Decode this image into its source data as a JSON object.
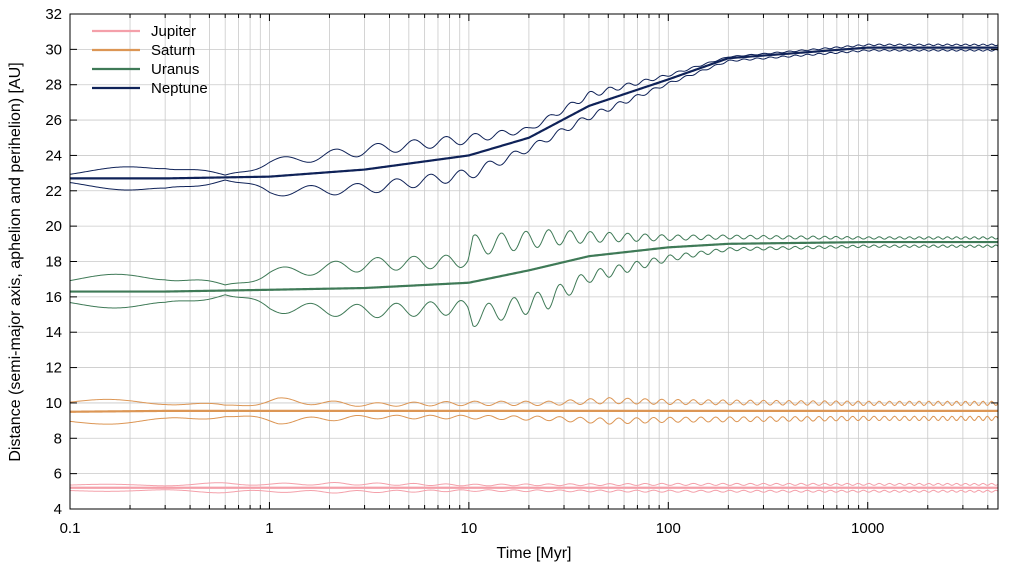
{
  "chart_data": {
    "type": "line",
    "title": "",
    "xlabel": "Time [Myr]",
    "ylabel": "Distance (semi-major axis, aphelion and perihelion) [AU]",
    "x_scale": "log",
    "xlim": [
      0.1,
      4500
    ],
    "ylim": [
      4,
      32
    ],
    "x_ticks": [
      {
        "value": 0.1,
        "label": "0.1"
      },
      {
        "value": 1,
        "label": "1"
      },
      {
        "value": 10,
        "label": "10"
      },
      {
        "value": 100,
        "label": "100"
      },
      {
        "value": 1000,
        "label": "1000"
      }
    ],
    "y_ticks": [
      {
        "value": 4,
        "label": "4"
      },
      {
        "value": 6,
        "label": "6"
      },
      {
        "value": 8,
        "label": "8"
      },
      {
        "value": 10,
        "label": "10"
      },
      {
        "value": 12,
        "label": "12"
      },
      {
        "value": 14,
        "label": "14"
      },
      {
        "value": 16,
        "label": "16"
      },
      {
        "value": 18,
        "label": "18"
      },
      {
        "value": 20,
        "label": "20"
      },
      {
        "value": 22,
        "label": "22"
      },
      {
        "value": 24,
        "label": "24"
      },
      {
        "value": 26,
        "label": "26"
      },
      {
        "value": 28,
        "label": "28"
      },
      {
        "value": 30,
        "label": "30"
      },
      {
        "value": 32,
        "label": "32"
      }
    ],
    "grid": true,
    "legend_position": "top-left",
    "series": [
      {
        "name": "Jupiter",
        "color": "#f4a0aa",
        "semi_major": {
          "x": [
            0.1,
            1,
            10,
            100,
            1000,
            4500
          ],
          "y": [
            5.2,
            5.2,
            5.2,
            5.2,
            5.2,
            5.2
          ]
        },
        "aphelion": {
          "x": [
            0.1,
            0.3,
            0.6,
            1,
            2,
            5,
            10,
            100,
            1000,
            4500
          ],
          "y": [
            5.4,
            5.4,
            5.5,
            5.45,
            5.5,
            5.45,
            5.4,
            5.45,
            5.45,
            5.45
          ]
        },
        "perihelion": {
          "x": [
            0.1,
            0.3,
            0.6,
            1,
            2,
            5,
            10,
            100,
            1000,
            4500
          ],
          "y": [
            5.0,
            5.0,
            4.9,
            4.95,
            4.9,
            4.95,
            5.0,
            4.95,
            4.95,
            4.95
          ]
        }
      },
      {
        "name": "Saturn",
        "color": "#dc9655",
        "semi_major": {
          "x": [
            0.1,
            0.3,
            1,
            10,
            100,
            1000,
            4500
          ],
          "y": [
            9.5,
            9.55,
            9.55,
            9.55,
            9.55,
            9.55,
            9.55
          ]
        },
        "aphelion": {
          "x": [
            0.1,
            0.3,
            0.6,
            1.1,
            3,
            10,
            25,
            50,
            100,
            1000,
            4500
          ],
          "y": [
            10.2,
            10.2,
            9.9,
            10.3,
            10.0,
            10.1,
            10.1,
            10.3,
            10.2,
            10.1,
            10.1
          ]
        },
        "perihelion": {
          "x": [
            0.1,
            0.3,
            0.6,
            1.1,
            3,
            10,
            25,
            50,
            100,
            1000,
            4500
          ],
          "y": [
            8.8,
            8.8,
            9.2,
            8.8,
            9.1,
            9.1,
            9.0,
            8.8,
            8.9,
            9.0,
            9.0
          ]
        }
      },
      {
        "name": "Uranus",
        "color": "#3f7a57",
        "semi_major": {
          "x": [
            0.1,
            0.3,
            1,
            3,
            10,
            20,
            40,
            100,
            200,
            1000,
            4500
          ],
          "y": [
            16.3,
            16.3,
            16.4,
            16.5,
            16.8,
            17.5,
            18.3,
            18.8,
            19.0,
            19.1,
            19.1
          ]
        },
        "aphelion": {
          "x": [
            0.1,
            0.3,
            0.6,
            1,
            3,
            9.9,
            10.5,
            25,
            40,
            100,
            200,
            1000,
            4500
          ],
          "y": [
            17.1,
            17.5,
            16.7,
            17.6,
            18.2,
            18.4,
            19.5,
            19.8,
            19.7,
            19.5,
            19.5,
            19.4,
            19.4
          ]
        },
        "perihelion": {
          "x": [
            0.1,
            0.3,
            0.6,
            1,
            3,
            9.9,
            10.5,
            25,
            40,
            100,
            200,
            1000,
            4500
          ],
          "y": [
            15.5,
            15.2,
            16.1,
            15.1,
            14.8,
            15.0,
            14.3,
            15.3,
            16.8,
            18.0,
            18.6,
            18.8,
            18.8
          ]
        }
      },
      {
        "name": "Neptune",
        "color": "#0f2258",
        "semi_major": {
          "x": [
            0.1,
            0.3,
            1,
            3,
            10,
            20,
            40,
            100,
            200,
            1000,
            4500
          ],
          "y": [
            22.7,
            22.7,
            22.8,
            23.2,
            24.0,
            25.0,
            26.8,
            28.3,
            29.5,
            30.1,
            30.1
          ]
        },
        "aphelion": {
          "x": [
            0.1,
            0.3,
            0.6,
            1,
            3,
            10,
            20,
            40,
            100,
            200,
            1000,
            4500
          ],
          "y": [
            23.0,
            23.7,
            22.9,
            23.8,
            24.6,
            25.2,
            25.6,
            27.6,
            28.6,
            29.6,
            30.3,
            30.3
          ]
        },
        "perihelion": {
          "x": [
            0.1,
            0.3,
            0.6,
            1,
            3,
            10,
            20,
            40,
            100,
            200,
            1000,
            4500
          ],
          "y": [
            22.4,
            21.7,
            22.6,
            21.7,
            21.8,
            22.6,
            24.2,
            26.0,
            28.0,
            29.3,
            29.9,
            29.9
          ]
        }
      }
    ]
  }
}
